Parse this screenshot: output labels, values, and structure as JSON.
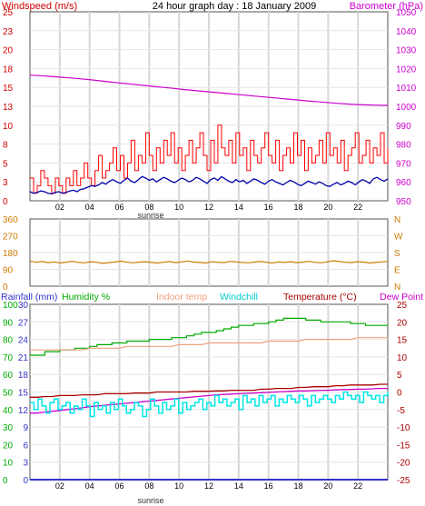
{
  "colors": {
    "wind": "#cc0000",
    "gust": "#ff0000",
    "avgwind": "#0000aa",
    "barometer": "#cc00cc",
    "direction": "#cc7a00",
    "humidity": "#00aa00",
    "indoor": "#f0a080",
    "windchill": "#00e6e6",
    "temperature": "#aa0000",
    "dewpoint": "#cc00cc",
    "rainfall": "#3333cc",
    "grid": "#d8d8d8",
    "border": "#555555"
  },
  "chart_data": [
    {
      "type": "line",
      "title": "24 hour graph day : 18 January 2009",
      "left_axis_label": "Windspeed (m/s)",
      "right_axis_label": "Barometer (hPa)",
      "left_ticks": [
        "25",
        "23",
        "20",
        "18",
        "15",
        "13",
        "10",
        "8",
        "5",
        "3",
        "0"
      ],
      "right_ticks": [
        "1050",
        "1040",
        "1030",
        "1020",
        "1010",
        "1000",
        "990",
        "980",
        "970",
        "960",
        "950"
      ],
      "ylim_left": [
        0,
        25
      ],
      "ylim_right": [
        950,
        1050
      ],
      "x_ticks": [
        "02",
        "04",
        "06",
        "08",
        "10",
        "12",
        "14",
        "16",
        "18",
        "20",
        "22"
      ],
      "sunrise_label": "sunrise",
      "series": [
        {
          "key": "gust",
          "values": [
            3,
            1,
            2,
            4,
            3,
            2,
            1,
            3,
            2,
            1,
            3,
            2,
            4,
            2,
            3,
            5,
            3,
            2,
            4,
            6,
            3,
            4,
            5,
            7,
            4,
            6,
            3,
            5,
            8,
            4,
            6,
            5,
            9,
            6,
            4,
            7,
            5,
            8,
            6,
            9,
            5,
            7,
            4,
            6,
            8,
            5,
            7,
            9,
            6,
            4,
            8,
            5,
            10,
            7,
            6,
            8,
            5,
            9,
            6,
            7,
            4,
            8,
            6,
            5,
            7,
            9,
            6,
            5,
            8,
            4,
            6,
            7,
            5,
            9,
            6,
            8,
            4,
            7,
            5,
            6,
            8,
            5,
            9,
            6,
            7,
            5,
            8,
            4,
            6,
            7,
            9,
            5,
            6,
            8,
            5,
            7,
            6,
            9,
            5,
            7
          ]
        },
        {
          "key": "avgwind",
          "values": [
            1.2,
            1.0,
            1.1,
            1.3,
            1.2,
            1.0,
            0.9,
            1.1,
            1.2,
            1.0,
            1.1,
            1.3,
            1.4,
            1.2,
            1.5,
            1.6,
            1.8,
            2.0,
            1.9,
            2.1,
            2.4,
            2.2,
            2.6,
            2.8,
            2.5,
            2.3,
            2.7,
            3.0,
            2.6,
            2.4,
            2.8,
            3.2,
            3.0,
            2.7,
            2.9,
            2.5,
            2.8,
            3.1,
            2.9,
            2.6,
            2.4,
            2.7,
            3.0,
            2.8,
            2.5,
            2.7,
            3.1,
            2.9,
            2.6,
            2.3,
            2.8,
            3.0,
            2.7,
            3.2,
            2.9,
            2.6,
            2.4,
            2.8,
            2.5,
            2.7,
            2.3,
            2.6,
            2.9,
            2.7,
            2.4,
            2.2,
            2.6,
            2.8,
            2.5,
            2.3,
            2.1,
            2.4,
            2.7,
            2.5,
            2.2,
            2.0,
            2.3,
            2.6,
            2.4,
            2.2,
            2.5,
            2.3,
            2.0,
            1.9,
            2.2,
            2.4,
            2.1,
            2.3,
            2.6,
            2.4,
            2.1,
            2.5,
            2.8,
            2.6,
            2.3,
            2.9,
            3.1,
            2.8,
            2.6,
            2.9
          ]
        },
        {
          "key": "barometer",
          "values": [
            1016.5,
            1016.2,
            1015.8,
            1015.4,
            1015.0,
            1014.5,
            1014.0,
            1013.4,
            1012.8,
            1012.2,
            1011.7,
            1011.1,
            1010.6,
            1010.0,
            1009.5,
            1008.9,
            1008.4,
            1007.9,
            1007.4,
            1006.9,
            1006.4,
            1005.9,
            1005.4,
            1004.9,
            1004.4,
            1003.9,
            1003.4,
            1002.9,
            1002.5,
            1002.0,
            1001.6,
            1001.2,
            1000.9,
            1000.7,
            1000.6,
            1000.5
          ]
        }
      ]
    },
    {
      "type": "line",
      "left_ticks": [
        "360",
        "270",
        "180",
        "90",
        "0"
      ],
      "right_ticks": [
        "N",
        "W",
        "S",
        "E",
        "N"
      ],
      "ylim": [
        0,
        360
      ],
      "series": [
        {
          "key": "direction",
          "values": [
            135,
            128,
            132,
            126,
            130,
            124,
            129,
            133,
            127,
            125,
            131,
            128,
            122,
            126,
            130,
            134,
            128,
            125,
            129,
            131,
            127,
            124,
            128,
            132,
            126,
            130,
            135,
            129,
            127,
            124,
            131,
            128,
            126,
            133,
            130,
            127,
            125,
            129,
            132,
            128,
            124,
            130,
            127,
            131,
            126,
            129,
            133,
            128,
            125,
            130,
            136,
            132,
            128,
            126,
            131,
            129,
            124,
            127,
            130,
            133
          ]
        }
      ]
    },
    {
      "type": "line",
      "legend": [
        "Rainfall (mm)",
        "Humidity %",
        "Indoor temp",
        "Windchill",
        "Temperature (°C)",
        "Dew Point"
      ],
      "rain_ticks": [
        "30",
        "27",
        "24",
        "21",
        "18",
        "15",
        "12",
        "9",
        "6",
        "3",
        "0"
      ],
      "humidity_ticks": [
        "100",
        "90",
        "80",
        "70",
        "60",
        "50",
        "40",
        "30",
        "20",
        "10",
        "0"
      ],
      "temp_ticks": [
        "25",
        "20",
        "15",
        "10",
        "5",
        "0",
        "-5",
        "-10",
        "-15",
        "-20",
        "-25"
      ],
      "ylim_temp": [
        -25,
        25
      ],
      "ylim_humidity": [
        0,
        100
      ],
      "ylim_rain": [
        0,
        30
      ],
      "x_ticks": [
        "02",
        "04",
        "06",
        "08",
        "10",
        "12",
        "14",
        "16",
        "18",
        "20",
        "22"
      ],
      "sunrise_label": "sunrise",
      "series": [
        {
          "key": "humidity",
          "values": [
            71,
            71,
            73,
            73,
            74,
            74,
            75,
            75,
            76,
            77,
            77,
            78,
            78,
            79,
            79,
            79,
            80,
            80,
            80,
            81,
            81,
            82,
            83,
            84,
            84,
            85,
            86,
            87,
            88,
            88,
            89,
            89,
            90,
            91,
            92,
            92,
            92,
            91,
            91,
            90,
            90,
            90,
            90,
            89,
            89,
            88,
            88,
            88,
            88
          ]
        },
        {
          "key": "indoor",
          "values": [
            12,
            12,
            12,
            12,
            12,
            12,
            12,
            12,
            12.5,
            12.5,
            12.5,
            12.5,
            12.5,
            13,
            13,
            13,
            13,
            13,
            13,
            13,
            13.5,
            13.5,
            13.5,
            13.5,
            14,
            14,
            14,
            14,
            14,
            14,
            14,
            14,
            14.5,
            14.5,
            14.5,
            14.5,
            14.5,
            15,
            15,
            15,
            15,
            15,
            15,
            15,
            15.5,
            15.5,
            15.5,
            15.5,
            15.5
          ]
        },
        {
          "key": "temperature",
          "values": [
            -1.5,
            -1.5,
            -1.3,
            -1.3,
            -1.0,
            -1.0,
            -1.0,
            -0.8,
            -0.8,
            -0.8,
            -0.5,
            -0.5,
            -0.5,
            -0.5,
            -0.3,
            -0.3,
            -0.3,
            0,
            0,
            0,
            0,
            0,
            0.2,
            0.2,
            0.2,
            0.3,
            0.3,
            0.5,
            0.5,
            0.5,
            0.5,
            0.8,
            0.8,
            1.0,
            1.0,
            1.0,
            1.3,
            1.3,
            1.5,
            1.5,
            1.5,
            1.8,
            1.8,
            2.0,
            2.0,
            2.0,
            2.0,
            2.2,
            2.2
          ]
        },
        {
          "key": "dewpoint",
          "values": [
            -6.0,
            -6.0,
            -5.7,
            -5.5,
            -5.3,
            -5.0,
            -4.8,
            -4.5,
            -4.2,
            -4.0,
            -3.8,
            -3.6,
            -3.4,
            -3.2,
            -3.0,
            -2.8,
            -2.6,
            -2.4,
            -2.2,
            -2.0,
            -1.8,
            -1.6,
            -1.4,
            -1.2,
            -1.0,
            -0.8,
            -0.7,
            -0.6,
            -0.5,
            -0.4,
            -0.3,
            -0.2,
            -0.1,
            0,
            0.1,
            0.2,
            0.3,
            0.3,
            0.4,
            0.5,
            0.5,
            0.6,
            0.7,
            0.7,
            0.8,
            0.8,
            0.9,
            1.0,
            1.0
          ]
        },
        {
          "key": "windchill",
          "values": [
            -3,
            -5,
            -2,
            -4,
            -6,
            -3,
            -2,
            -5,
            -4,
            -3,
            -6,
            -4,
            -5,
            -2,
            -4,
            -7,
            -3,
            -5,
            -4,
            -6,
            -3,
            -5,
            -2,
            -4,
            -6,
            -5,
            -3,
            -4,
            -7,
            -5,
            -2,
            -4,
            -6,
            -3,
            -5,
            -4,
            -2,
            -6,
            -3,
            -5,
            -4,
            -3,
            -2,
            -5,
            -3,
            -4,
            -1,
            -3,
            -2,
            -4,
            -3,
            -2,
            -5,
            -1,
            -3,
            -2,
            -4,
            -1,
            -3,
            -2,
            -1,
            -4,
            -2,
            -3,
            -1,
            -2,
            -3,
            -1,
            -2,
            -4,
            -1,
            -3,
            -2,
            -1,
            -2,
            -3,
            -1,
            -2,
            0,
            -1,
            -2,
            -1,
            -3,
            0,
            -1,
            -2,
            -1,
            -3,
            -1,
            0
          ]
        },
        {
          "key": "rainfall",
          "values": [
            0,
            0,
            0,
            0,
            0,
            0,
            0,
            0,
            0,
            0,
            0,
            0,
            0,
            0,
            0,
            0,
            0,
            0,
            0,
            0,
            0,
            0,
            0,
            0,
            0,
            0,
            0,
            0,
            0,
            0,
            0,
            0,
            0,
            0,
            0,
            0,
            0,
            0,
            0,
            0,
            0,
            0,
            0,
            0,
            0,
            0,
            0,
            0,
            0
          ]
        }
      ]
    }
  ]
}
